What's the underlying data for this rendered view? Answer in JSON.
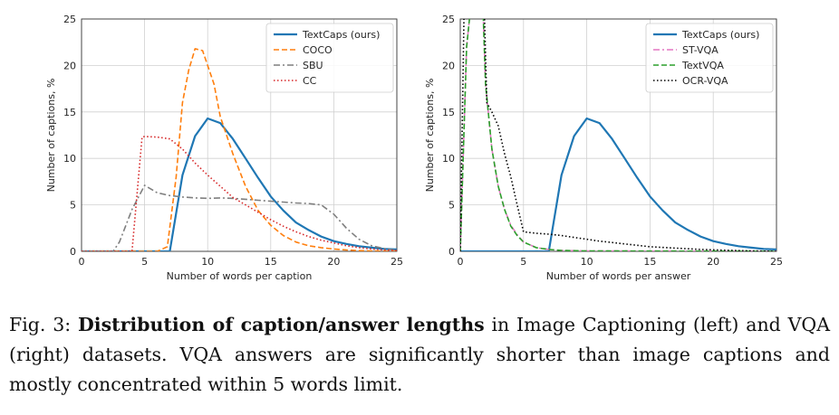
{
  "chart_data": [
    {
      "type": "line",
      "xlabel": "Number of words per caption",
      "ylabel": "Number of captions, %",
      "xlim": [
        0,
        25
      ],
      "ylim": [
        0,
        25
      ],
      "xticks": [
        0,
        5,
        10,
        15,
        20,
        25
      ],
      "yticks": [
        0,
        5,
        10,
        15,
        20,
        25
      ],
      "grid": true,
      "legend": "top-right",
      "series": [
        {
          "name": "TextCaps (ours)",
          "color": "#1f77b4",
          "dash": "solid",
          "points": [
            [
              0,
              0
            ],
            [
              7,
              0
            ],
            [
              8,
              8.2
            ],
            [
              9,
              12.4
            ],
            [
              10,
              14.3
            ],
            [
              11,
              13.8
            ],
            [
              12,
              12.1
            ],
            [
              13,
              10.0
            ],
            [
              14,
              7.9
            ],
            [
              15,
              5.9
            ],
            [
              16,
              4.4
            ],
            [
              17,
              3.1
            ],
            [
              18,
              2.3
            ],
            [
              19,
              1.6
            ],
            [
              20,
              1.1
            ],
            [
              21,
              0.8
            ],
            [
              22,
              0.55
            ],
            [
              23,
              0.4
            ],
            [
              24,
              0.25
            ],
            [
              25,
              0.2
            ]
          ]
        },
        {
          "name": "COCO",
          "color": "#ff7f0e",
          "dash": "dashed",
          "points": [
            [
              0,
              0
            ],
            [
              6,
              0
            ],
            [
              6.8,
              0.5
            ],
            [
              7.5,
              8
            ],
            [
              8,
              16
            ],
            [
              8.5,
              19.5
            ],
            [
              9,
              21.8
            ],
            [
              9.6,
              21.6
            ],
            [
              10.5,
              18
            ],
            [
              11,
              14.5
            ],
            [
              12,
              10.5
            ],
            [
              13,
              7
            ],
            [
              14,
              4.4
            ],
            [
              15,
              2.8
            ],
            [
              16,
              1.7
            ],
            [
              17,
              1.0
            ],
            [
              18,
              0.6
            ],
            [
              19,
              0.4
            ],
            [
              20,
              0.25
            ],
            [
              21,
              0.15
            ],
            [
              22,
              0.08
            ],
            [
              23,
              0.04
            ],
            [
              25,
              0
            ]
          ]
        },
        {
          "name": "SBU",
          "color": "#7f7f7f",
          "dash": "dashdot",
          "points": [
            [
              0,
              0
            ],
            [
              2.5,
              0
            ],
            [
              3,
              1
            ],
            [
              4,
              4.5
            ],
            [
              5,
              7.1
            ],
            [
              6,
              6.3
            ],
            [
              7,
              6.0
            ],
            [
              8,
              5.85
            ],
            [
              9,
              5.75
            ],
            [
              10,
              5.7
            ],
            [
              11,
              5.75
            ],
            [
              12,
              5.7
            ],
            [
              13,
              5.6
            ],
            [
              14,
              5.5
            ],
            [
              15,
              5.4
            ],
            [
              16,
              5.3
            ],
            [
              17,
              5.2
            ],
            [
              18,
              5.15
            ],
            [
              19,
              5.0
            ],
            [
              20,
              4.0
            ],
            [
              21,
              2.5
            ],
            [
              22,
              1.3
            ],
            [
              23,
              0.6
            ],
            [
              24,
              0.3
            ],
            [
              25,
              0.1
            ]
          ]
        },
        {
          "name": "CC",
          "color": "#d62728",
          "dash": "dotted",
          "points": [
            [
              0,
              0
            ],
            [
              4,
              0
            ],
            [
              4.8,
              12.3
            ],
            [
              5,
              12.35
            ],
            [
              6,
              12.3
            ],
            [
              7,
              12.1
            ],
            [
              8,
              11.0
            ],
            [
              9,
              9.5
            ],
            [
              10,
              8.2
            ],
            [
              11,
              7.0
            ],
            [
              12,
              5.8
            ],
            [
              13,
              5.0
            ],
            [
              14,
              4.2
            ],
            [
              15,
              3.4
            ],
            [
              16,
              2.7
            ],
            [
              17,
              2.1
            ],
            [
              18,
              1.6
            ],
            [
              19,
              1.2
            ],
            [
              20,
              0.9
            ],
            [
              21,
              0.6
            ],
            [
              22,
              0.4
            ],
            [
              23,
              0.25
            ],
            [
              24,
              0.15
            ],
            [
              25,
              0.1
            ]
          ]
        }
      ]
    },
    {
      "type": "line",
      "xlabel": "Number of words per answer",
      "ylabel": "Number of captions, %",
      "xlim": [
        0,
        25
      ],
      "ylim": [
        0,
        25
      ],
      "xticks": [
        0,
        5,
        10,
        15,
        20,
        25
      ],
      "yticks": [
        0,
        5,
        10,
        15,
        20,
        25
      ],
      "grid": true,
      "legend": "top-right",
      "series": [
        {
          "name": "TextCaps (ours)",
          "color": "#1f77b4",
          "dash": "solid",
          "points": [
            [
              0,
              0
            ],
            [
              7,
              0
            ],
            [
              8,
              8.2
            ],
            [
              9,
              12.4
            ],
            [
              10,
              14.3
            ],
            [
              11,
              13.8
            ],
            [
              12,
              12.1
            ],
            [
              13,
              10.0
            ],
            [
              14,
              7.9
            ],
            [
              15,
              5.9
            ],
            [
              16,
              4.4
            ],
            [
              17,
              3.1
            ],
            [
              18,
              2.3
            ],
            [
              19,
              1.6
            ],
            [
              20,
              1.1
            ],
            [
              21,
              0.8
            ],
            [
              22,
              0.55
            ],
            [
              23,
              0.4
            ],
            [
              24,
              0.25
            ],
            [
              25,
              0.2
            ]
          ]
        },
        {
          "name": "ST-VQA",
          "color": "#e377c2",
          "dash": "dashdot",
          "points": [
            [
              0,
              0
            ],
            [
              0.5,
              22
            ],
            [
              0.8,
              26
            ],
            [
              1.5,
              26
            ],
            [
              1.8,
              26
            ],
            [
              2,
              18
            ],
            [
              2.5,
              11
            ],
            [
              3,
              7
            ],
            [
              3.5,
              4.5
            ],
            [
              4,
              2.8
            ],
            [
              4.5,
              1.8
            ],
            [
              5,
              1.0
            ],
            [
              6,
              0.4
            ],
            [
              7,
              0.2
            ],
            [
              8,
              0.1
            ],
            [
              10,
              0.05
            ],
            [
              25,
              0
            ]
          ]
        },
        {
          "name": "TextVQA",
          "color": "#2ca02c",
          "dash": "dashed",
          "points": [
            [
              0,
              0
            ],
            [
              0.5,
              22
            ],
            [
              0.8,
              26
            ],
            [
              1.5,
              26
            ],
            [
              1.8,
              26
            ],
            [
              2,
              18
            ],
            [
              2.5,
              11
            ],
            [
              3,
              7
            ],
            [
              3.5,
              4.5
            ],
            [
              4,
              2.7
            ],
            [
              4.5,
              1.7
            ],
            [
              5,
              1.0
            ],
            [
              6,
              0.4
            ],
            [
              7,
              0.2
            ],
            [
              8,
              0.1
            ],
            [
              10,
              0.05
            ],
            [
              25,
              0
            ]
          ]
        },
        {
          "name": "OCR-VQA",
          "color": "#000000",
          "dash": "dotted",
          "points": [
            [
              0,
              0
            ],
            [
              0.3,
              26
            ],
            [
              1.5,
              26
            ],
            [
              1.9,
              26
            ],
            [
              2.1,
              16
            ],
            [
              2.5,
              15
            ],
            [
              3,
              13.5
            ],
            [
              3.5,
              10.5
            ],
            [
              4,
              8
            ],
            [
              4.5,
              5
            ],
            [
              5,
              2.1
            ],
            [
              6,
              1.95
            ],
            [
              7,
              1.85
            ],
            [
              8,
              1.7
            ],
            [
              9,
              1.5
            ],
            [
              10,
              1.3
            ],
            [
              11,
              1.1
            ],
            [
              12,
              0.95
            ],
            [
              13,
              0.8
            ],
            [
              14,
              0.65
            ],
            [
              15,
              0.5
            ],
            [
              17,
              0.35
            ],
            [
              19,
              0.2
            ],
            [
              21,
              0.12
            ],
            [
              23,
              0.05
            ],
            [
              25,
              0
            ]
          ]
        }
      ]
    }
  ],
  "caption": {
    "prefix": "Fig. 3: ",
    "bold": "Distribution of caption/answer lengths",
    "rest": " in Image Captioning (left) and VQA (right) datasets. VQA answers are significantly shorter than image captions and mostly concentrated within 5 words limit."
  }
}
